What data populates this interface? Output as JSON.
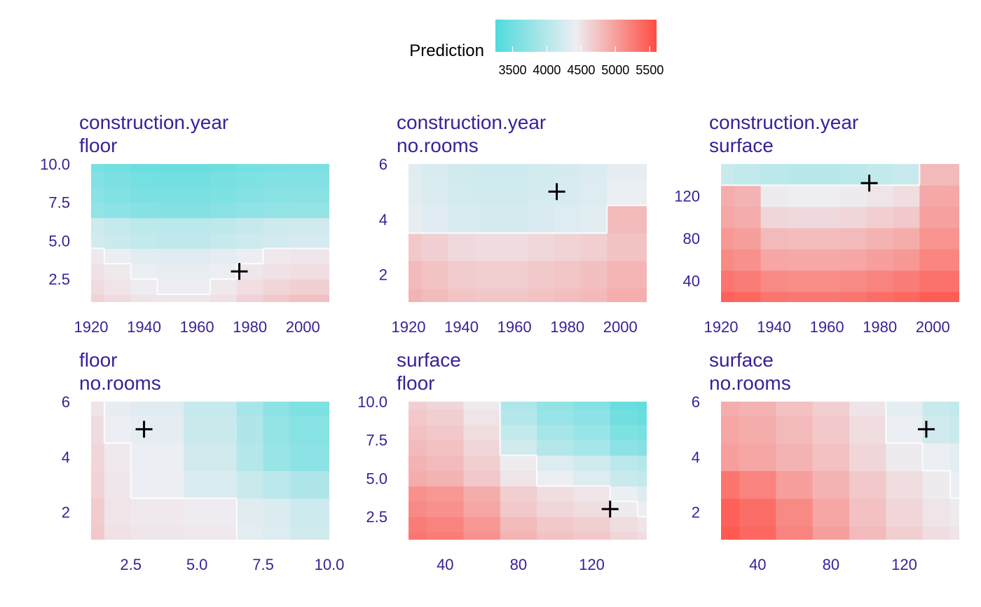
{
  "colors": {
    "low": "#4fdbdb",
    "mid": "#eeeef3",
    "high": "#ff4c42",
    "text": "#3a1f96",
    "contour": "#ffffff",
    "marker": "#000000"
  },
  "legend": {
    "title": "Prediction",
    "ticks": [
      3500,
      4000,
      4500,
      5000,
      5500
    ],
    "range": [
      3250,
      5600
    ]
  },
  "chart_data": [
    {
      "type": "heatmap",
      "title": "construction.year",
      "subtitle": "floor",
      "x_var": "construction.year",
      "y_var": "floor",
      "xlim": [
        1920,
        2010
      ],
      "ylim": [
        1,
        10
      ],
      "xticks": [
        1920,
        1940,
        1960,
        1980,
        2000
      ],
      "yticks": [
        2.5,
        5.0,
        7.5,
        10.0
      ],
      "yticks_text": [
        "2.5",
        "5.0",
        "7.5",
        "10.0"
      ],
      "marker": [
        1976,
        3
      ],
      "x": [
        1920,
        1930,
        1940,
        1950,
        1960,
        1970,
        1980,
        1990,
        2000,
        2010
      ],
      "y": [
        1,
        2,
        3,
        4,
        5,
        6,
        7,
        8,
        9,
        10
      ],
      "z": [
        [
          4620,
          4560,
          4500,
          4480,
          4480,
          4520,
          4620,
          4700,
          4760,
          4760
        ],
        [
          4560,
          4500,
          4440,
          4420,
          4420,
          4460,
          4540,
          4600,
          4640,
          4640
        ],
        [
          4520,
          4460,
          4400,
          4380,
          4380,
          4420,
          4480,
          4520,
          4540,
          4540
        ],
        [
          4460,
          4400,
          4340,
          4320,
          4320,
          4360,
          4420,
          4460,
          4480,
          4480
        ],
        [
          4220,
          4160,
          4100,
          4080,
          4080,
          4120,
          4180,
          4220,
          4240,
          4240
        ],
        [
          4180,
          4120,
          4060,
          4040,
          4040,
          4080,
          4140,
          4180,
          4200,
          4200
        ],
        [
          3750,
          3700,
          3650,
          3640,
          3640,
          3670,
          3720,
          3750,
          3760,
          3760
        ],
        [
          3680,
          3630,
          3580,
          3570,
          3570,
          3600,
          3650,
          3680,
          3690,
          3690
        ],
        [
          3630,
          3580,
          3530,
          3520,
          3520,
          3550,
          3600,
          3630,
          3640,
          3640
        ],
        [
          3560,
          3510,
          3460,
          3450,
          3450,
          3480,
          3530,
          3560,
          3570,
          3570
        ]
      ]
    },
    {
      "type": "heatmap",
      "title": "construction.year",
      "subtitle": "no.rooms",
      "x_var": "construction.year",
      "y_var": "no.rooms",
      "xlim": [
        1920,
        2010
      ],
      "ylim": [
        1,
        6
      ],
      "xticks": [
        1920,
        1940,
        1960,
        1980,
        2000
      ],
      "yticks": [
        2,
        4,
        6
      ],
      "yticks_text": [
        "2",
        "4",
        "6"
      ],
      "marker": [
        1976,
        5
      ],
      "x": [
        1920,
        1930,
        1940,
        1950,
        1960,
        1970,
        1980,
        1990,
        2000,
        2010
      ],
      "y": [
        1,
        2,
        3,
        4,
        5,
        6
      ],
      "z": [
        [
          4850,
          4790,
          4730,
          4710,
          4710,
          4740,
          4770,
          4810,
          4890,
          4890
        ],
        [
          4800,
          4740,
          4680,
          4660,
          4660,
          4690,
          4720,
          4760,
          4840,
          4840
        ],
        [
          4700,
          4640,
          4580,
          4560,
          4560,
          4590,
          4620,
          4660,
          4740,
          4740
        ],
        [
          4380,
          4320,
          4260,
          4240,
          4240,
          4270,
          4300,
          4340,
          4800,
          4800
        ],
        [
          4340,
          4280,
          4220,
          4200,
          4200,
          4230,
          4260,
          4300,
          4400,
          4400
        ],
        [
          4320,
          4260,
          4200,
          4180,
          4180,
          4210,
          4240,
          4280,
          4380,
          4380
        ]
      ]
    },
    {
      "type": "heatmap",
      "title": "construction.year",
      "subtitle": "surface",
      "x_var": "construction.year",
      "y_var": "surface",
      "xlim": [
        1920,
        2010
      ],
      "ylim": [
        20,
        150
      ],
      "xticks": [
        1920,
        1940,
        1960,
        1980,
        2000
      ],
      "yticks": [
        40,
        80,
        120
      ],
      "yticks_text": [
        "40",
        "80",
        "120"
      ],
      "marker": [
        1976,
        132
      ],
      "x": [
        1920,
        1930,
        1940,
        1950,
        1960,
        1970,
        1980,
        1990,
        2000,
        2010
      ],
      "y": [
        20,
        40,
        60,
        80,
        100,
        120,
        140,
        150
      ],
      "z": [
        [
          5450,
          5400,
          5300,
          5280,
          5280,
          5300,
          5350,
          5400,
          5480,
          5480
        ],
        [
          5300,
          5250,
          5150,
          5130,
          5130,
          5150,
          5200,
          5250,
          5330,
          5330
        ],
        [
          5150,
          5100,
          4950,
          4930,
          4930,
          4950,
          5000,
          5050,
          5180,
          5180
        ],
        [
          5050,
          5000,
          4800,
          4780,
          4780,
          4800,
          4850,
          4900,
          5080,
          5080
        ],
        [
          4950,
          4900,
          4600,
          4580,
          4580,
          4600,
          4650,
          4700,
          4980,
          4980
        ],
        [
          4900,
          4850,
          4450,
          4430,
          4430,
          4450,
          4500,
          4550,
          4930,
          4930
        ],
        [
          4150,
          4100,
          4050,
          4030,
          4030,
          4050,
          4100,
          4150,
          4800,
          4800
        ],
        [
          4150,
          4100,
          4050,
          4030,
          4030,
          4050,
          4100,
          4150,
          4800,
          4800
        ]
      ]
    },
    {
      "type": "heatmap",
      "title": "floor",
      "subtitle": "no.rooms",
      "x_var": "floor",
      "y_var": "no.rooms",
      "xlim": [
        1,
        10
      ],
      "ylim": [
        1,
        6
      ],
      "xticks": [
        2.5,
        5.0,
        7.5,
        10.0
      ],
      "xticks_text": [
        "2.5",
        "5.0",
        "7.5",
        "10.0"
      ],
      "yticks": [
        2,
        4,
        6
      ],
      "yticks_text": [
        "2",
        "4",
        "6"
      ],
      "marker": [
        3,
        5
      ],
      "x": [
        1,
        2,
        3,
        4,
        5,
        6,
        7,
        8,
        9,
        10
      ],
      "y": [
        1,
        2,
        3,
        4,
        5,
        6
      ],
      "z": [
        [
          4700,
          4520,
          4480,
          4480,
          4460,
          4460,
          4350,
          4300,
          4200,
          4200
        ],
        [
          4680,
          4500,
          4460,
          4460,
          4440,
          4440,
          4330,
          4280,
          4180,
          4180
        ],
        [
          4620,
          4480,
          4420,
          4420,
          4280,
          4280,
          4150,
          4050,
          3950,
          3950
        ],
        [
          4600,
          4460,
          4400,
          4400,
          4200,
          4200,
          4000,
          3800,
          3700,
          3700
        ],
        [
          4560,
          4420,
          4360,
          4360,
          4160,
          4160,
          3960,
          3760,
          3660,
          3660
        ],
        [
          4500,
          4380,
          4320,
          4320,
          4120,
          4120,
          3900,
          3700,
          3600,
          3600
        ]
      ]
    },
    {
      "type": "heatmap",
      "title": "surface",
      "subtitle": "floor",
      "x_var": "surface",
      "y_var": "floor",
      "xlim": [
        20,
        150
      ],
      "ylim": [
        1,
        10
      ],
      "xticks": [
        40,
        80,
        120
      ],
      "yticks": [
        2.5,
        5.0,
        7.5,
        10.0
      ],
      "yticks_text": [
        "2.5",
        "5.0",
        "7.5",
        "10.0"
      ],
      "marker": [
        130,
        3
      ],
      "x": [
        20,
        40,
        60,
        80,
        100,
        120,
        140,
        150
      ],
      "y": [
        1,
        2,
        3,
        4,
        5,
        6,
        7,
        8,
        9,
        10
      ],
      "z": [
        [
          5300,
          5250,
          5100,
          4850,
          4750,
          4700,
          4600,
          4550
        ],
        [
          5250,
          5200,
          5050,
          4800,
          4700,
          4650,
          4550,
          4500
        ],
        [
          5150,
          5100,
          4950,
          4700,
          4600,
          4550,
          4450,
          4400
        ],
        [
          5100,
          5050,
          4900,
          4650,
          4550,
          4500,
          4400,
          4300
        ],
        [
          4900,
          4850,
          4700,
          4500,
          4400,
          4300,
          4150,
          4100
        ],
        [
          4850,
          4800,
          4650,
          4450,
          4300,
          4200,
          4050,
          4000
        ],
        [
          4800,
          4750,
          4600,
          4200,
          4000,
          3900,
          3700,
          3650
        ],
        [
          4750,
          4700,
          4550,
          4100,
          3900,
          3800,
          3600,
          3550
        ],
        [
          4700,
          4650,
          4500,
          4000,
          3800,
          3700,
          3500,
          3450
        ],
        [
          4650,
          4600,
          4450,
          3950,
          3750,
          3650,
          3450,
          3400
        ]
      ]
    },
    {
      "type": "heatmap",
      "title": "surface",
      "subtitle": "no.rooms",
      "x_var": "surface",
      "y_var": "no.rooms",
      "xlim": [
        20,
        150
      ],
      "ylim": [
        1,
        6
      ],
      "xticks": [
        40,
        80,
        120
      ],
      "yticks": [
        2,
        4,
        6
      ],
      "yticks_text": [
        "2",
        "4",
        "6"
      ],
      "marker": [
        132,
        5
      ],
      "x": [
        20,
        40,
        60,
        80,
        100,
        120,
        140,
        150
      ],
      "y": [
        1,
        2,
        3,
        4,
        5,
        6
      ],
      "z": [
        [
          5500,
          5400,
          5200,
          5000,
          4800,
          4650,
          4550,
          4500
        ],
        [
          5450,
          5350,
          5150,
          4950,
          4750,
          4600,
          4500,
          4450
        ],
        [
          5300,
          5200,
          5000,
          4850,
          4700,
          4550,
          4450,
          4400
        ],
        [
          5000,
          4950,
          4850,
          4750,
          4600,
          4450,
          4400,
          4350
        ],
        [
          4950,
          4900,
          4800,
          4700,
          4550,
          4400,
          4200,
          4150
        ],
        [
          4900,
          4850,
          4750,
          4650,
          4500,
          4350,
          4150,
          4100
        ]
      ]
    }
  ]
}
